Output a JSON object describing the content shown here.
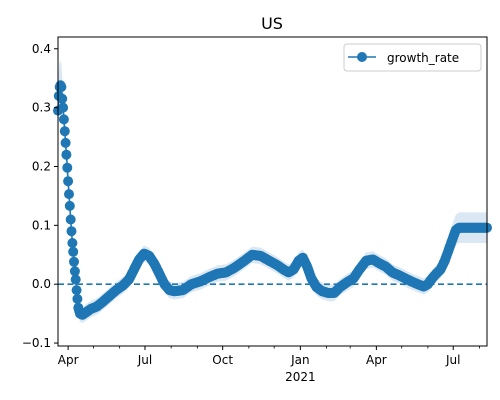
{
  "chart_data": {
    "type": "line",
    "title": "US",
    "xlabel": "",
    "ylabel": "",
    "x_range": [
      "2020-03-20",
      "2021-08-10"
    ],
    "ylim": [
      -0.105,
      0.42
    ],
    "y_ticks": [
      -0.1,
      0.0,
      0.1,
      0.2,
      0.3,
      0.4
    ],
    "y_tick_labels": [
      "−0.1",
      "0.0",
      "0.1",
      "0.2",
      "0.3",
      "0.4"
    ],
    "x_ticks": [
      {
        "date": "2020-04-01",
        "label": "Apr",
        "sub": ""
      },
      {
        "date": "2020-07-01",
        "label": "Jul",
        "sub": ""
      },
      {
        "date": "2020-10-01",
        "label": "Oct",
        "sub": ""
      },
      {
        "date": "2021-01-01",
        "label": "Jan",
        "sub": "2021"
      },
      {
        "date": "2021-04-01",
        "label": "Apr",
        "sub": ""
      },
      {
        "date": "2021-07-01",
        "label": "Jul",
        "sub": ""
      }
    ],
    "grid": false,
    "legend_position": "top-right",
    "series": [
      {
        "name": "growth_rate",
        "color": "#1f77b4",
        "band_color": "#dbe8f4",
        "points": [
          [
            "2020-03-20",
            0.295
          ],
          [
            "2020-03-21",
            0.32
          ],
          [
            "2020-03-22",
            0.335
          ],
          [
            "2020-03-23",
            0.338
          ],
          [
            "2020-03-24",
            0.335
          ],
          [
            "2020-03-25",
            0.315
          ],
          [
            "2020-03-26",
            0.3
          ],
          [
            "2020-03-27",
            0.28
          ],
          [
            "2020-03-28",
            0.26
          ],
          [
            "2020-03-29",
            0.24
          ],
          [
            "2020-03-30",
            0.22
          ],
          [
            "2020-03-31",
            0.198
          ],
          [
            "2020-04-01",
            0.175
          ],
          [
            "2020-04-02",
            0.153
          ],
          [
            "2020-04-03",
            0.133
          ],
          [
            "2020-04-04",
            0.11
          ],
          [
            "2020-04-05",
            0.09
          ],
          [
            "2020-04-06",
            0.07
          ],
          [
            "2020-04-07",
            0.055
          ],
          [
            "2020-04-08",
            0.038
          ],
          [
            "2020-04-09",
            0.022
          ],
          [
            "2020-04-10",
            0.008
          ],
          [
            "2020-04-11",
            -0.01
          ],
          [
            "2020-04-12",
            -0.025
          ],
          [
            "2020-04-13",
            -0.04
          ],
          [
            "2020-04-15",
            -0.05
          ],
          [
            "2020-04-18",
            -0.052
          ],
          [
            "2020-04-22",
            -0.048
          ],
          [
            "2020-04-28",
            -0.042
          ],
          [
            "2020-05-05",
            -0.038
          ],
          [
            "2020-05-12",
            -0.03
          ],
          [
            "2020-05-20",
            -0.02
          ],
          [
            "2020-05-28",
            -0.01
          ],
          [
            "2020-06-05",
            -0.002
          ],
          [
            "2020-06-12",
            0.008
          ],
          [
            "2020-06-18",
            0.025
          ],
          [
            "2020-06-24",
            0.042
          ],
          [
            "2020-06-30",
            0.052
          ],
          [
            "2020-07-06",
            0.048
          ],
          [
            "2020-07-12",
            0.035
          ],
          [
            "2020-07-18",
            0.018
          ],
          [
            "2020-07-24",
            0.0
          ],
          [
            "2020-07-30",
            -0.01
          ],
          [
            "2020-08-05",
            -0.012
          ],
          [
            "2020-08-15",
            -0.01
          ],
          [
            "2020-08-25",
            0.0
          ],
          [
            "2020-09-05",
            0.005
          ],
          [
            "2020-09-15",
            0.012
          ],
          [
            "2020-09-25",
            0.018
          ],
          [
            "2020-10-05",
            0.02
          ],
          [
            "2020-10-15",
            0.028
          ],
          [
            "2020-10-25",
            0.038
          ],
          [
            "2020-11-05",
            0.05
          ],
          [
            "2020-11-15",
            0.048
          ],
          [
            "2020-11-25",
            0.04
          ],
          [
            "2020-12-05",
            0.032
          ],
          [
            "2020-12-12",
            0.025
          ],
          [
            "2020-12-18",
            0.02
          ],
          [
            "2020-12-24",
            0.025
          ],
          [
            "2020-12-30",
            0.04
          ],
          [
            "2021-01-04",
            0.045
          ],
          [
            "2021-01-09",
            0.03
          ],
          [
            "2021-01-14",
            0.01
          ],
          [
            "2021-01-20",
            -0.005
          ],
          [
            "2021-01-27",
            -0.012
          ],
          [
            "2021-02-03",
            -0.015
          ],
          [
            "2021-02-10",
            -0.015
          ],
          [
            "2021-02-17",
            -0.005
          ],
          [
            "2021-02-25",
            0.003
          ],
          [
            "2021-03-05",
            0.01
          ],
          [
            "2021-03-12",
            0.025
          ],
          [
            "2021-03-20",
            0.04
          ],
          [
            "2021-03-28",
            0.042
          ],
          [
            "2021-04-05",
            0.035
          ],
          [
            "2021-04-12",
            0.03
          ],
          [
            "2021-04-20",
            0.02
          ],
          [
            "2021-04-28",
            0.015
          ],
          [
            "2021-05-05",
            0.01
          ],
          [
            "2021-05-12",
            0.005
          ],
          [
            "2021-05-20",
            0.0
          ],
          [
            "2021-05-27",
            -0.004
          ],
          [
            "2021-06-01",
            0.0
          ],
          [
            "2021-06-06",
            0.01
          ],
          [
            "2021-06-11",
            0.018
          ],
          [
            "2021-06-16",
            0.025
          ],
          [
            "2021-06-21",
            0.04
          ],
          [
            "2021-06-26",
            0.06
          ],
          [
            "2021-07-01",
            0.08
          ],
          [
            "2021-07-04",
            0.092
          ],
          [
            "2021-07-08",
            0.096
          ],
          [
            "2021-07-15",
            0.096
          ],
          [
            "2021-07-25",
            0.096
          ],
          [
            "2021-08-05",
            0.096
          ],
          [
            "2021-08-10",
            0.096
          ]
        ]
      }
    ],
    "reference_line": {
      "y": 0.0,
      "style": "dashed",
      "color": "#1f77b4"
    }
  }
}
